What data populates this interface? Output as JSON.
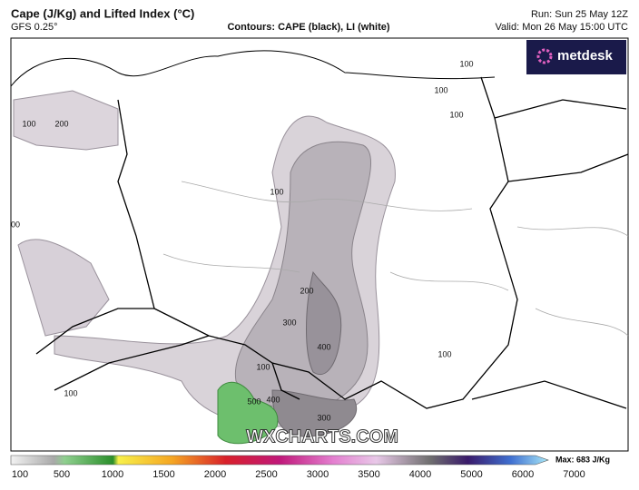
{
  "header": {
    "title": "Cape (J/Kg) and Lifted Index (°C)",
    "model": "GFS 0.25°",
    "contours": "Contours: CAPE (black), LI (white)",
    "run": "Run: Sun 25 May 12Z",
    "valid": "Valid: Mon 26 May 15:00 UTC"
  },
  "logo": "metdesk",
  "watermark": "WXCHARTS.COM",
  "contour_labels": [
    "100",
    "200",
    "100",
    "100",
    "100",
    "100",
    "00",
    "200",
    "300",
    "400",
    "100",
    "500",
    "400",
    "300",
    "100",
    "100"
  ],
  "colorbar": {
    "ticks": [
      100,
      500,
      1000,
      1500,
      2000,
      2500,
      3000,
      3500,
      4000,
      5000,
      6000,
      7000
    ],
    "max": "Max: 683 J/Kg"
  }
}
